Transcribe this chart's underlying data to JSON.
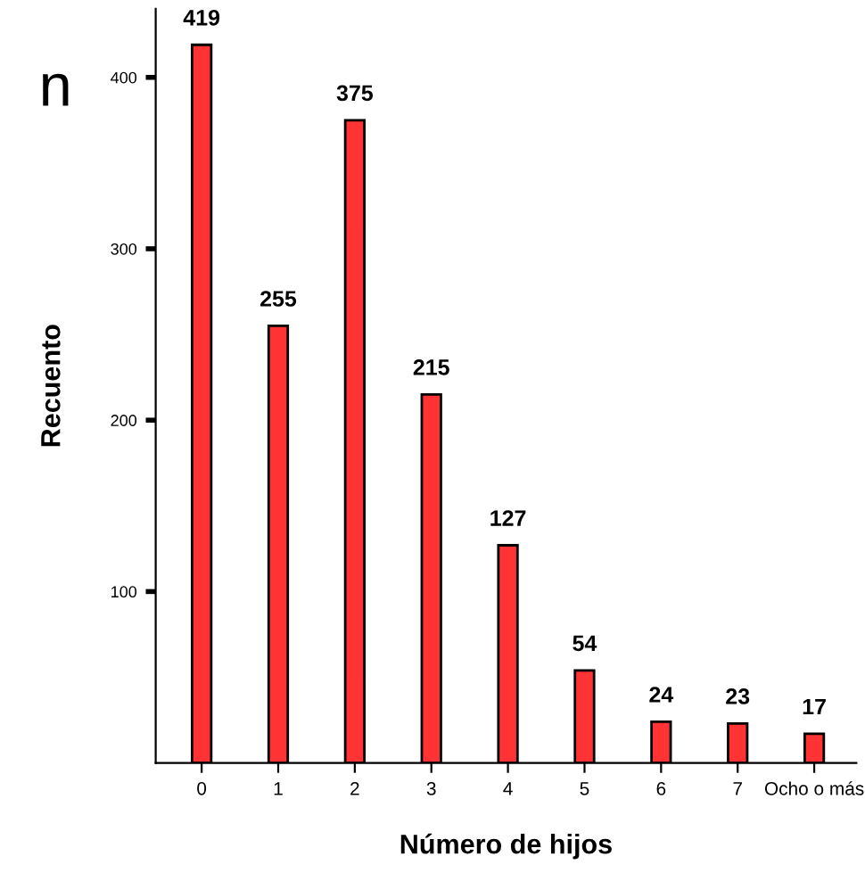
{
  "chart_data": {
    "type": "bar",
    "xlabel": "Número de hijos",
    "ylabel": "Recuento",
    "categories": [
      "0",
      "1",
      "2",
      "3",
      "4",
      "5",
      "6",
      "7",
      "Ocho o más"
    ],
    "values": [
      419,
      255,
      375,
      215,
      127,
      54,
      24,
      23,
      17
    ],
    "color": "#ff3333",
    "ylim": [
      0,
      440
    ],
    "yticks": [
      100,
      200,
      300,
      400
    ],
    "data_labels": true,
    "grid": false,
    "legend": false,
    "annotations": [
      "n"
    ]
  }
}
